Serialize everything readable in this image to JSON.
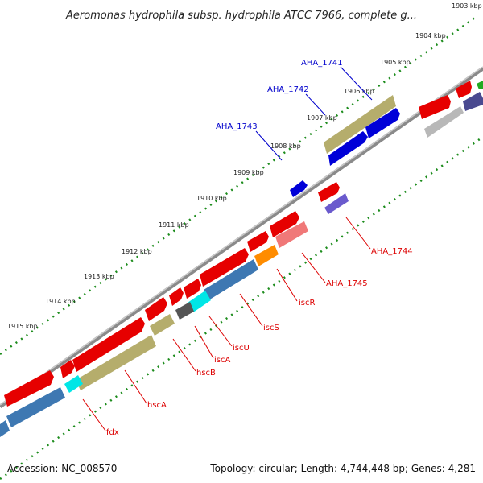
{
  "title": "Aeromonas hydrophila subsp. hydrophila ATCC 7966, complete g...",
  "kbp_ticks": [
    "1903 kbp",
    "1904 kbp",
    "1905 kbp",
    "1906 kbp",
    "1907 kbp",
    "1908 kbp",
    "1909 kbp",
    "1910 kbp",
    "1911 kbp",
    "1912 kbp",
    "1913 kbp",
    "1914 kbp",
    "1915 kbp"
  ],
  "gene_labels_blue": [
    "AHA_1741",
    "AHA_1742",
    "AHA_1743"
  ],
  "gene_labels_red": [
    "AHA_1744",
    "AHA_1745",
    "iscR",
    "iscS",
    "iscU",
    "iscA",
    "hscB",
    "hscA",
    "fdx"
  ],
  "footer": {
    "accession": "Accession: NC_008570",
    "summary": "Topology: circular; Length: 4,744,448 bp; Genes: 4,281"
  },
  "colors": {
    "backbone": "#8a8a8a",
    "tick_dots": "#1c8c1c",
    "gene_red": "#e60000",
    "gene_blue": "#0000d8",
    "gene_olive": "#b5ad6c",
    "gene_steel": "#3e78b2",
    "gene_cyan": "#00e6e6",
    "gene_orange": "#ff8c00",
    "gene_pink": "#f07878",
    "gene_purple": "#6a5acd",
    "gene_gray": "#b8b8b8",
    "label_blue": "#0000cc",
    "label_red": "#dd0000"
  }
}
